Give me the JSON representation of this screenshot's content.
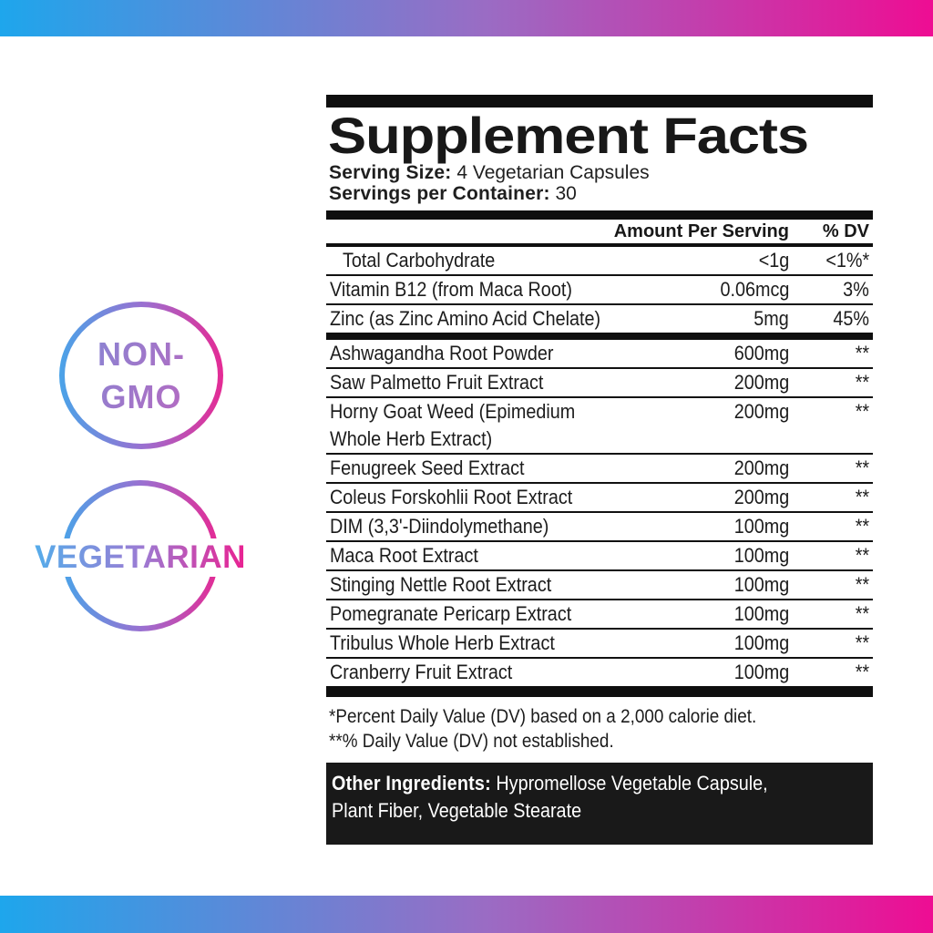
{
  "colors": {
    "grad_left": "#1ea6ec",
    "grad_right": "#ee0d93",
    "ring_left": "#4aa3e8",
    "ring_mid": "#9b6fd0",
    "ring_right": "#e52a94",
    "text_nongmo_start": "#7b8ed9",
    "text_nongmo_end": "#c55fba",
    "text_veg_start": "#55acea",
    "text_veg_mid": "#9b7cd4",
    "text_veg_end": "#ea2191",
    "ink": "#1a1a1a"
  },
  "badges": {
    "non_gmo": {
      "line1": "NON-",
      "line2": "GMO"
    },
    "vegetarian": {
      "label": "VEGETARIAN"
    }
  },
  "panel": {
    "title": "Supplement Facts",
    "serving_size_label": "Serving Size:",
    "serving_size_value": "4 Vegetarian Capsules",
    "servings_per_container_label": "Servings per Container:",
    "servings_per_container_value": "30",
    "header": {
      "amount": "Amount Per Serving",
      "dv": "% DV"
    },
    "nutrient_rows": [
      {
        "name": "Total Carbohydrate",
        "amount": "<1g",
        "dv": "<1%*",
        "indent": true
      },
      {
        "name": "Vitamin B12 (from Maca Root)",
        "amount": "0.06mcg",
        "dv": "3%"
      },
      {
        "name": "Zinc (as Zinc Amino Acid Chelate)",
        "amount": "5mg",
        "dv": "45%"
      }
    ],
    "ingredient_rows": [
      {
        "name": "Ashwagandha Root Powder",
        "amount": "600mg",
        "dv": "**"
      },
      {
        "name": "Saw Palmetto Fruit Extract",
        "amount": "200mg",
        "dv": "**"
      },
      {
        "name": "Horny Goat Weed (Epimedium Whole Herb Extract)",
        "amount": "200mg",
        "dv": "**"
      },
      {
        "name": "Fenugreek Seed Extract",
        "amount": "200mg",
        "dv": "**"
      },
      {
        "name": "Coleus Forskohlii Root Extract",
        "amount": "200mg",
        "dv": "**"
      },
      {
        "name": "DIM (3,3'-Diindolymethane)",
        "amount": "100mg",
        "dv": "**"
      },
      {
        "name": "Maca Root Extract",
        "amount": "100mg",
        "dv": "**"
      },
      {
        "name": "Stinging Nettle Root Extract",
        "amount": "100mg",
        "dv": "**"
      },
      {
        "name": "Pomegranate Pericarp Extract",
        "amount": "100mg",
        "dv": "**"
      },
      {
        "name": "Tribulus Whole Herb Extract",
        "amount": "100mg",
        "dv": "**"
      },
      {
        "name": "Cranberry Fruit Extract",
        "amount": "100mg",
        "dv": "**"
      }
    ],
    "footnotes": [
      "*Percent Daily Value (DV) based on a 2,000 calorie diet.",
      "**% Daily Value (DV) not established."
    ],
    "other_ingredients": {
      "label": "Other Ingredients:",
      "value": "Hypromellose Vegetable Capsule, Plant Fiber, Vegetable Stearate"
    }
  }
}
